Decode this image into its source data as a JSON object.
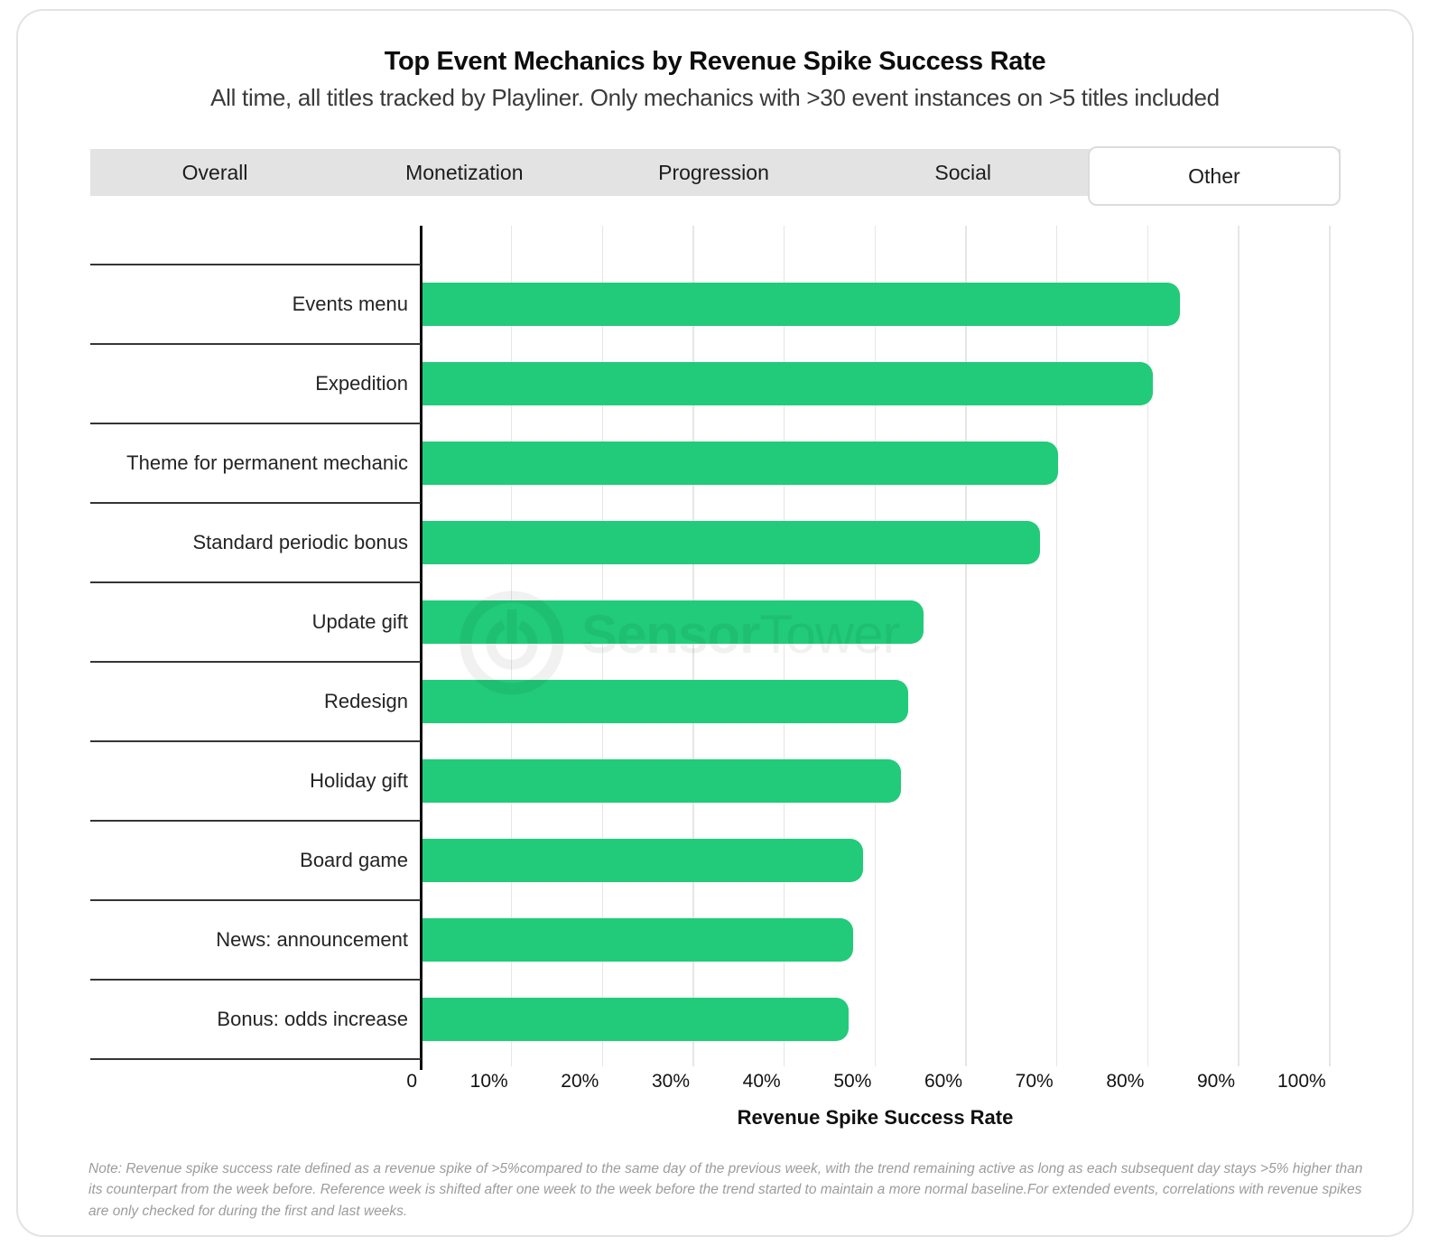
{
  "tabs": {
    "items": [
      "Overall",
      "Monetization",
      "Progression",
      "Social",
      "Other"
    ],
    "active": "Other"
  },
  "chart_data": {
    "type": "bar",
    "orientation": "horizontal",
    "title": "Top Event Mechanics by Revenue Spike Success Rate",
    "subtitle": "All time, all titles tracked by Playliner. Only mechanics with >30 event instances on >5 titles included",
    "categories": [
      "Events menu",
      "Expedition",
      "Theme for permanent mechanic",
      "Standard periodic bonus",
      "Update gift",
      "Redesign",
      "Holiday gift",
      "Board game",
      "News: announcement",
      "Bonus: odds increase"
    ],
    "values": [
      83.5,
      80.6,
      70.1,
      68.1,
      55.3,
      53.6,
      52.8,
      48.7,
      47.6,
      47.1
    ],
    "xlabel": "Revenue Spike Success Rate",
    "xticks": [
      "0",
      "10%",
      "20%",
      "30%",
      "40%",
      "50%",
      "60%",
      "70%",
      "80%",
      "90%",
      "100%"
    ],
    "xlim": [
      0,
      100
    ],
    "grid": true,
    "legend": false,
    "bar_color": "#21cb79"
  },
  "watermark": {
    "logo": "sensor-tower-logo",
    "bold": "Sensor",
    "regular": "Tower"
  },
  "note": "Note: Revenue spike success rate defined as a revenue spike of >5%compared to the same day of the previous week, with the trend remaining active as long as each subsequent day stays >5% higher than its counterpart from the week before. Reference week is shifted after one week to the week before the trend started to maintain a more normal baseline.For extended events, correlations with revenue spikes are only checked for during the first and last weeks."
}
